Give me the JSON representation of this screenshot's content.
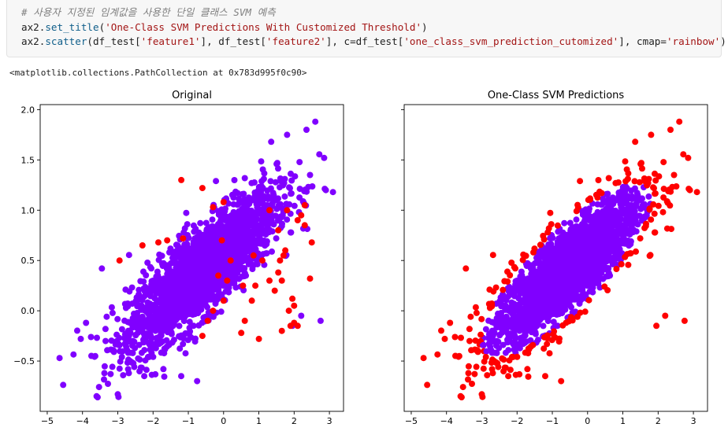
{
  "code": {
    "comment": "# 사용자 지정된 임계값을 사용한 단일 클래스 SVM 예측",
    "line2": {
      "obj": "ax2.",
      "fn": "set_title",
      "open": "(",
      "str": "'One-Class SVM Predictions With Customized Threshold'",
      "close": ")"
    },
    "line3": {
      "obj": "ax2.",
      "fn": "scatter",
      "p1": "(df_test[",
      "s1": "'feature1'",
      "p2": "], df_test[",
      "s2": "'feature2'",
      "p3": "], c=df_test[",
      "s3": "'one_class_svm_prediction_cutomized'",
      "p4": "], cmap=",
      "s4": "'rainbow'",
      "p5": ")"
    }
  },
  "output_text": "<matplotlib.collections.PathCollection at 0x783d995f0c90>",
  "colors": {
    "inlier": "#8000ff",
    "outlier": "#ff0000"
  },
  "chart_data": [
    {
      "type": "scatter",
      "title": "Original",
      "xlim": [
        -5.2,
        3.4
      ],
      "ylim": [
        -1.0,
        2.05
      ],
      "xticks": [
        -5,
        -4,
        -3,
        -2,
        -1,
        0,
        1,
        2,
        3
      ],
      "yticks": [
        -0.5,
        0.0,
        0.5,
        1.0,
        1.5,
        2.0
      ],
      "xtick_labels": [
        "−5",
        "−4",
        "−3",
        "−2",
        "−1",
        "0",
        "1",
        "2",
        "3"
      ],
      "ytick_labels": [
        "−0.5",
        "0.0",
        "0.5",
        "1.0",
        "1.5",
        "2.0"
      ],
      "cluster": {
        "center": [
          -0.6,
          0.4
        ],
        "correlation": "positive",
        "x_range": [
          -4.7,
          3.1
        ],
        "y_range": [
          -0.87,
          1.88
        ]
      },
      "outliers_colored": "few red points scattered inside the cluster",
      "outlier_points": [
        [
          -1.2,
          1.3
        ],
        [
          -0.6,
          1.22
        ],
        [
          0.0,
          1.08
        ],
        [
          -0.3,
          1.03
        ],
        [
          1.8,
          1.0
        ],
        [
          1.55,
          0.8
        ],
        [
          -1.6,
          0.7
        ],
        [
          -1.15,
          0.72
        ],
        [
          -0.15,
          0.35
        ],
        [
          -1.85,
          0.68
        ],
        [
          1.75,
          0.6
        ],
        [
          1.7,
          0.55
        ],
        [
          0.85,
          0.55
        ],
        [
          1.6,
          0.5
        ],
        [
          -2.95,
          0.5
        ],
        [
          2.5,
          0.68
        ],
        [
          1.55,
          0.38
        ],
        [
          1.65,
          0.3
        ],
        [
          2.45,
          0.32
        ],
        [
          0.2,
          0.5
        ],
        [
          0.55,
          0.25
        ],
        [
          1.45,
          0.2
        ],
        [
          0.0,
          0.1
        ],
        [
          2.0,
          0.05
        ],
        [
          1.85,
          0.0
        ],
        [
          2.1,
          -0.15
        ],
        [
          0.5,
          -0.22
        ],
        [
          -0.45,
          -0.1
        ],
        [
          -0.6,
          -0.25
        ],
        [
          1.0,
          -0.28
        ],
        [
          2.0,
          -0.12
        ],
        [
          1.9,
          -0.15
        ],
        [
          -0.3,
          0.0
        ],
        [
          0.1,
          0.3
        ],
        [
          -0.05,
          0.7
        ],
        [
          1.3,
          1.0
        ],
        [
          2.1,
          0.9
        ],
        [
          2.3,
          0.85
        ],
        [
          1.95,
          0.12
        ],
        [
          0.8,
          0.1
        ],
        [
          -2.3,
          0.65
        ],
        [
          1.65,
          -0.2
        ],
        [
          2.2,
          0.95
        ],
        [
          1.3,
          0.3
        ],
        [
          0.9,
          0.25
        ],
        [
          2.3,
          1.05
        ],
        [
          1.1,
          0.5
        ],
        [
          0.6,
          -0.1
        ]
      ]
    },
    {
      "type": "scatter",
      "title": "One-Class SVM Predictions",
      "xlim": [
        -5.2,
        3.4
      ],
      "ylim": [
        -1.0,
        2.05
      ],
      "xticks": [
        -5,
        -4,
        -3,
        -2,
        -1,
        0,
        1,
        2,
        3
      ],
      "xtick_labels": [
        "−5",
        "−4",
        "−3",
        "−2",
        "−1",
        "0",
        "1",
        "2",
        "3"
      ],
      "cluster": {
        "center": [
          -0.6,
          0.4
        ],
        "correlation": "positive",
        "x_range": [
          -4.7,
          3.1
        ],
        "y_range": [
          -0.87,
          1.88
        ]
      },
      "outliers_colored": "red ring of points on the outer edge of the cluster"
    }
  ]
}
